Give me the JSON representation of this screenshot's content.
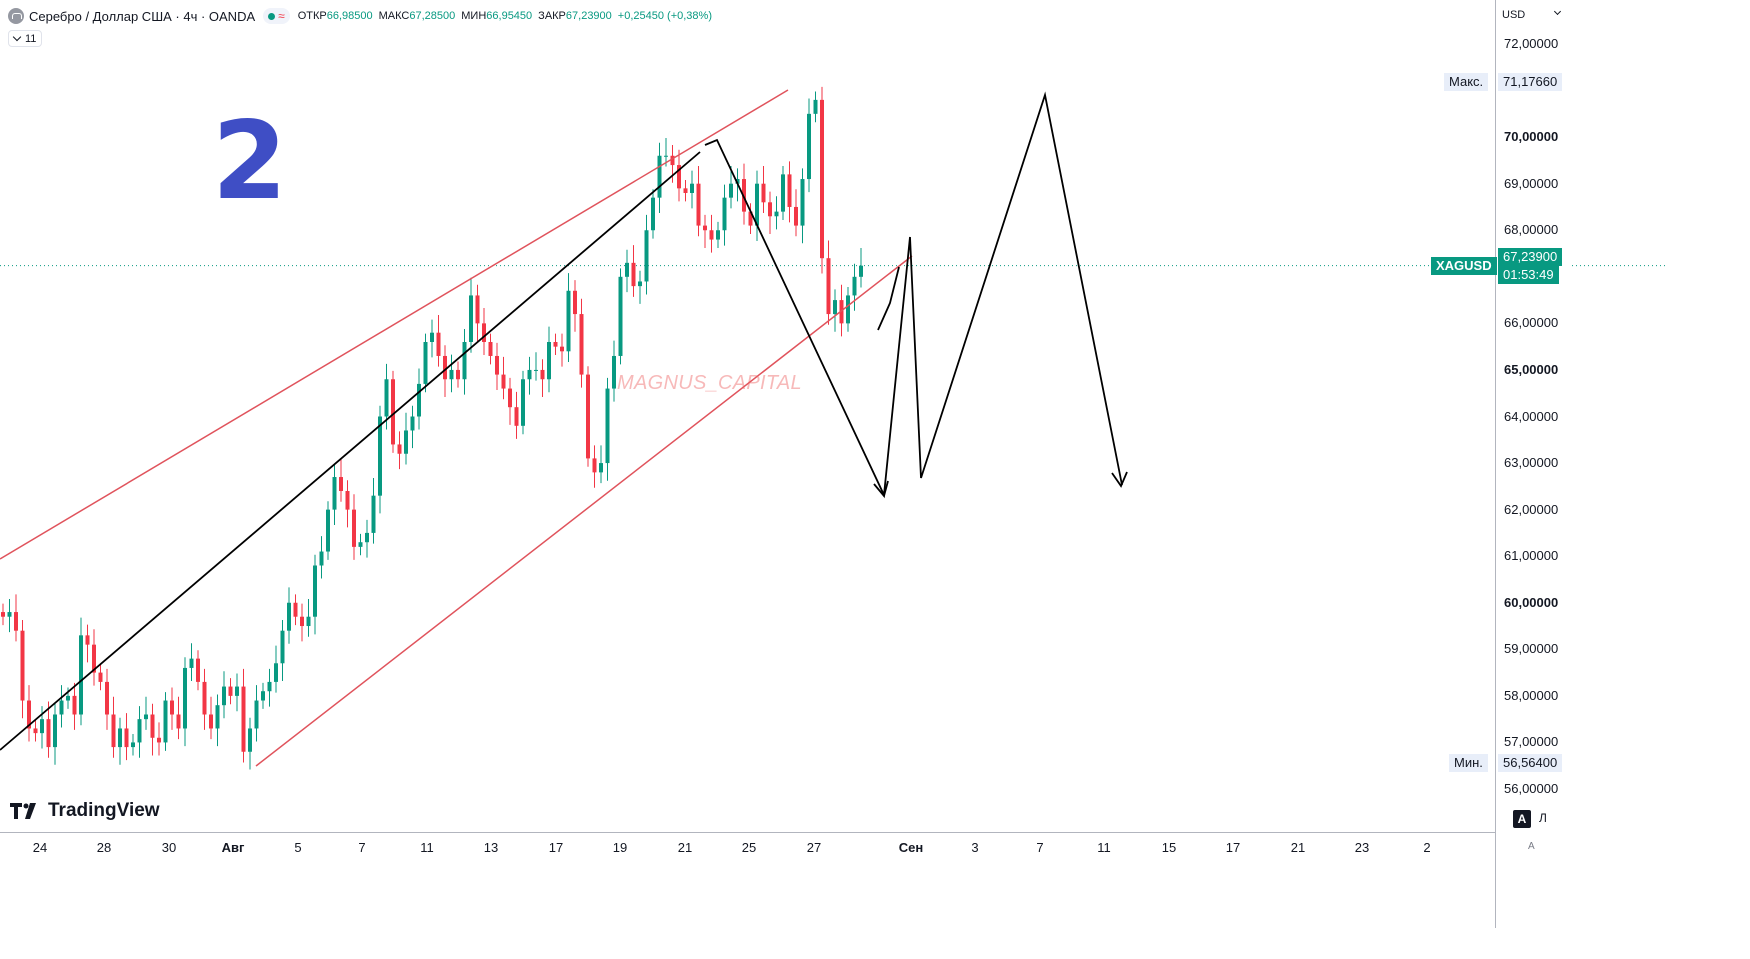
{
  "header": {
    "symbol_title": "Серебро / Доллар США · 4ч · OANDA",
    "open_label": "ОТКР",
    "open_value": "66,98500",
    "high_label": "МАКС",
    "high_value": "67,28500",
    "low_label": "МИН",
    "low_value": "66,95450",
    "close_label": "ЗАКР",
    "close_value": "67,23900",
    "change": "+0,25450 (+0,38%)",
    "indicators_count": "11",
    "status_color": "#089981"
  },
  "overlay": {
    "big_number": "2",
    "watermark": "MAGNUS_CAPITAL",
    "brand": "TradingView"
  },
  "price_axis": {
    "currency": "USD",
    "ticks": [
      {
        "label": "72,00000",
        "value": 72.0,
        "bold": false
      },
      {
        "label": "70,00000",
        "value": 70.0,
        "bold": true
      },
      {
        "label": "69,00000",
        "value": 69.0,
        "bold": false
      },
      {
        "label": "68,00000",
        "value": 68.0,
        "bold": false
      },
      {
        "label": "66,00000",
        "value": 66.0,
        "bold": false
      },
      {
        "label": "65,00000",
        "value": 65.0,
        "bold": true
      },
      {
        "label": "64,00000",
        "value": 64.0,
        "bold": false
      },
      {
        "label": "63,00000",
        "value": 63.0,
        "bold": false
      },
      {
        "label": "62,00000",
        "value": 62.0,
        "bold": false
      },
      {
        "label": "61,00000",
        "value": 61.0,
        "bold": false
      },
      {
        "label": "60,00000",
        "value": 60.0,
        "bold": true
      },
      {
        "label": "59,00000",
        "value": 59.0,
        "bold": false
      },
      {
        "label": "58,00000",
        "value": 58.0,
        "bold": false
      },
      {
        "label": "57,00000",
        "value": 57.0,
        "bold": false
      },
      {
        "label": "56,00000",
        "value": 56.0,
        "bold": false
      }
    ],
    "max_label": "Макс.",
    "max_value": "71,17660",
    "max_price": 71.1766,
    "min_label": "Мин.",
    "min_value": "56,56400",
    "min_price": 56.564,
    "symbol_tag": "XAGUSD",
    "last_price": "67,23900",
    "last_price_num": 67.239,
    "countdown": "01:53:49",
    "auto_btn": "A",
    "log_btn": "Л",
    "corner": "A"
  },
  "time_axis": {
    "ticks": [
      {
        "label": "24",
        "bold": false
      },
      {
        "label": "28",
        "bold": false
      },
      {
        "label": "30",
        "bold": false
      },
      {
        "label": "Авг",
        "bold": true
      },
      {
        "label": "5",
        "bold": false
      },
      {
        "label": "7",
        "bold": false
      },
      {
        "label": "11",
        "bold": false
      },
      {
        "label": "13",
        "bold": false
      },
      {
        "label": "17",
        "bold": false
      },
      {
        "label": "19",
        "bold": false
      },
      {
        "label": "21",
        "bold": false
      },
      {
        "label": "25",
        "bold": false
      },
      {
        "label": "27",
        "bold": false
      },
      {
        "label": "Сен",
        "bold": true
      },
      {
        "label": "3",
        "bold": false
      },
      {
        "label": "7",
        "bold": false
      },
      {
        "label": "11",
        "bold": false
      },
      {
        "label": "15",
        "bold": false
      },
      {
        "label": "17",
        "bold": false
      },
      {
        "label": "21",
        "bold": false
      },
      {
        "label": "23",
        "bold": false
      },
      {
        "label": "2",
        "bold": false
      }
    ]
  },
  "chart_data": {
    "type": "candlestick",
    "symbol": "XAGUSD",
    "interval": "4h",
    "up_color": "#089981",
    "down_color": "#f23645",
    "ylim": [
      55.3,
      72.9
    ],
    "closes": [
      59.7,
      59.8,
      59.4,
      57.9,
      57.3,
      57.2,
      57.5,
      56.9,
      57.6,
      57.9,
      58.0,
      57.6,
      59.3,
      59.1,
      58.5,
      58.3,
      57.6,
      56.9,
      57.3,
      56.9,
      57.0,
      57.5,
      57.6,
      57.1,
      57.0,
      57.9,
      57.6,
      57.3,
      58.6,
      58.8,
      58.3,
      57.6,
      57.3,
      57.8,
      58.2,
      58.0,
      58.2,
      56.8,
      57.3,
      57.9,
      58.1,
      58.3,
      58.7,
      59.4,
      60.0,
      59.7,
      59.5,
      59.7,
      60.8,
      61.1,
      62.0,
      62.7,
      62.4,
      62.0,
      61.2,
      61.3,
      61.5,
      62.3,
      64.0,
      64.8,
      63.4,
      63.2,
      63.7,
      64.0,
      64.7,
      65.6,
      65.8,
      65.3,
      64.8,
      65.0,
      64.8,
      65.6,
      66.6,
      66.0,
      65.6,
      65.3,
      64.9,
      64.6,
      64.2,
      63.8,
      64.8,
      65.0,
      65.0,
      64.8,
      65.6,
      65.5,
      65.4,
      66.7,
      66.2,
      64.9,
      63.1,
      62.8,
      63.0,
      64.6,
      65.3,
      67.0,
      67.3,
      66.8,
      66.9,
      68.0,
      68.7,
      69.6,
      69.6,
      69.4,
      68.9,
      68.8,
      69.0,
      68.1,
      68.0,
      67.8,
      68.0,
      68.7,
      69.0,
      69.1,
      68.4,
      68.1,
      69.0,
      68.6,
      68.3,
      68.4,
      69.2,
      68.5,
      68.1,
      69.1,
      70.5,
      70.8,
      67.4,
      66.2,
      66.5,
      66.0,
      66.6,
      67.0,
      67.239
    ],
    "candles_note": "open = previous close; body colour from close vs open",
    "drawings": [
      {
        "name": "channel-upper-line",
        "kind": "trend-line",
        "color": "#e0535c"
      },
      {
        "name": "channel-lower-line",
        "kind": "trend-line",
        "color": "#e0535c"
      },
      {
        "name": "support-trend-line",
        "kind": "trend-line",
        "color": "#000000"
      },
      {
        "name": "projection-path",
        "kind": "path-with-arrows",
        "color": "#000000"
      }
    ]
  }
}
